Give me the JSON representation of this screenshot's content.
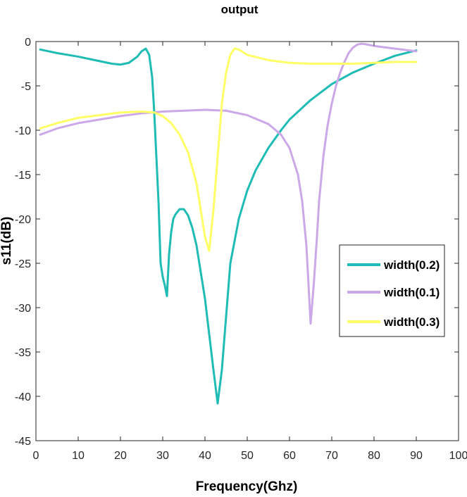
{
  "chart_data": {
    "type": "line",
    "title": "output",
    "xlabel": "Frequency(Ghz)",
    "ylabel": "s11(dB)",
    "xlim": [
      0,
      100
    ],
    "ylim": [
      -45,
      0
    ],
    "xticks": [
      0,
      10,
      20,
      30,
      40,
      50,
      60,
      70,
      80,
      90,
      100
    ],
    "yticks": [
      0,
      -5,
      -10,
      -15,
      -20,
      -25,
      -30,
      -35,
      -40,
      -45
    ],
    "grid": false,
    "legend_position": "lower-right",
    "series": [
      {
        "name": "width(0.2)",
        "color": "#1fbcb5",
        "x": [
          1,
          5,
          10,
          15,
          18,
          20,
          22,
          24,
          25,
          26,
          26.8,
          27.5,
          28,
          28.5,
          29,
          29.5,
          30,
          30.5,
          31,
          31.5,
          32,
          32.5,
          33,
          34,
          35,
          36,
          37,
          38,
          39,
          40,
          41,
          42,
          43,
          44,
          45,
          46,
          48,
          50,
          52,
          55,
          58,
          60,
          65,
          70,
          75,
          80,
          85,
          90
        ],
        "y": [
          -0.9,
          -1.3,
          -1.7,
          -2.2,
          -2.5,
          -2.6,
          -2.4,
          -1.7,
          -1.1,
          -0.8,
          -1.5,
          -4,
          -8,
          -13,
          -18,
          -25,
          -26.5,
          -27.5,
          -28.7,
          -24,
          -21.5,
          -20,
          -19.5,
          -18.9,
          -18.9,
          -19.6,
          -21,
          -23,
          -26,
          -29,
          -33,
          -37,
          -40.8,
          -37,
          -31,
          -25,
          -20,
          -16.8,
          -14.5,
          -12,
          -10,
          -8.8,
          -6.6,
          -4.8,
          -3.5,
          -2.5,
          -1.6,
          -1.0
        ]
      },
      {
        "name": "width(0.1)",
        "color": "#cda8e8",
        "x": [
          1,
          5,
          10,
          15,
          20,
          25,
          30,
          35,
          40,
          45,
          50,
          55,
          58,
          60,
          62,
          63,
          64,
          65,
          65.8,
          66.5,
          67,
          68,
          69,
          70,
          71,
          72,
          73,
          74,
          75,
          76,
          77,
          78,
          80,
          85,
          90
        ],
        "y": [
          -10.5,
          -9.8,
          -9.2,
          -8.8,
          -8.4,
          -8.1,
          -7.9,
          -7.8,
          -7.7,
          -7.8,
          -8.3,
          -9.3,
          -10.5,
          -12,
          -15,
          -18,
          -23,
          -31.8,
          -27,
          -22,
          -18,
          -13,
          -9.5,
          -7,
          -5,
          -3.5,
          -2.3,
          -1.3,
          -0.7,
          -0.35,
          -0.25,
          -0.3,
          -0.5,
          -0.8,
          -1.1
        ]
      },
      {
        "name": "width(0.3)",
        "color": "#ffff66",
        "x": [
          1,
          5,
          10,
          15,
          20,
          25,
          28,
          30,
          32,
          34,
          36,
          38,
          39,
          40,
          41,
          42,
          43,
          44,
          45,
          46,
          47,
          48,
          50,
          55,
          60,
          65,
          70,
          75,
          80,
          85,
          90
        ],
        "y": [
          -9.8,
          -9.2,
          -8.6,
          -8.3,
          -8.0,
          -7.9,
          -8.0,
          -8.4,
          -9.2,
          -10.5,
          -12.5,
          -16,
          -19,
          -22,
          -23.6,
          -19,
          -13,
          -7,
          -3.5,
          -1.5,
          -0.8,
          -0.9,
          -1.5,
          -2.1,
          -2.4,
          -2.5,
          -2.5,
          -2.5,
          -2.4,
          -2.3,
          -2.3
        ]
      }
    ]
  }
}
